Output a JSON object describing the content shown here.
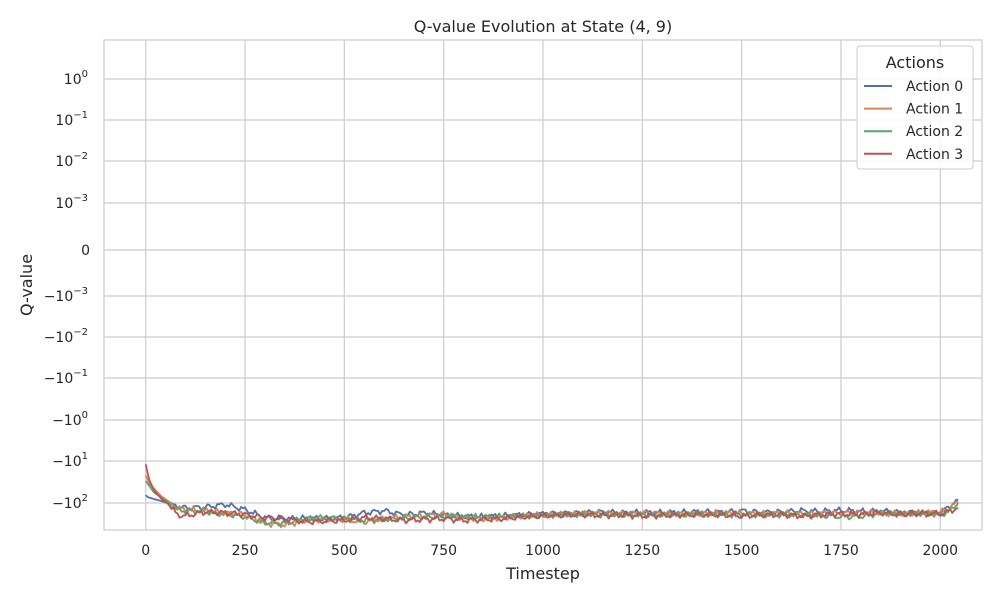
{
  "chart_data": {
    "type": "line",
    "title": "Q-value Evolution at State (4, 9)",
    "xlabel": "Timestep",
    "ylabel": "Q-value",
    "xlim": [
      -105,
      2105
    ],
    "x_ticks": [
      0,
      250,
      500,
      750,
      1000,
      1250,
      1500,
      1750,
      2000
    ],
    "y_scale": "symlog",
    "y_ticks": [
      {
        "value": 1,
        "label": "10",
        "exp": "0"
      },
      {
        "value": 0.1,
        "label": "10",
        "exp": "−1"
      },
      {
        "value": 0.01,
        "label": "10",
        "exp": "−2"
      },
      {
        "value": 0.001,
        "label": "10",
        "exp": "−3"
      },
      {
        "value": 0,
        "label": "0",
        "exp": ""
      },
      {
        "value": -0.001,
        "label": "−10",
        "exp": "−3"
      },
      {
        "value": -0.01,
        "label": "−10",
        "exp": "−2"
      },
      {
        "value": -0.1,
        "label": "−10",
        "exp": "−1"
      },
      {
        "value": -1,
        "label": "−10",
        "exp": "0"
      },
      {
        "value": -10,
        "label": "−10",
        "exp": "1"
      },
      {
        "value": -100,
        "label": "−10",
        "exp": "2"
      }
    ],
    "grid": true,
    "legend": {
      "title": "Actions",
      "position": "top-right"
    },
    "x": [
      0,
      5,
      10,
      20,
      40,
      60,
      80,
      100,
      150,
      200,
      250,
      300,
      350,
      400,
      450,
      500,
      550,
      600,
      650,
      700,
      750,
      800,
      850,
      900,
      950,
      1000,
      1050,
      1100,
      1150,
      1200,
      1250,
      1300,
      1350,
      1400,
      1450,
      1500,
      1550,
      1600,
      1650,
      1700,
      1750,
      1800,
      1850,
      1900,
      1950,
      2000,
      2025,
      2045
    ],
    "series": [
      {
        "name": "Action 0",
        "color": "#4c72b0",
        "values": [
          -65,
          -72,
          -75,
          -80,
          -90,
          -105,
          -112,
          -118,
          -115,
          -105,
          -125,
          -165,
          -172,
          -168,
          -170,
          -165,
          -140,
          -130,
          -150,
          -140,
          -150,
          -158,
          -160,
          -155,
          -150,
          -145,
          -142,
          -140,
          -135,
          -140,
          -138,
          -140,
          -138,
          -135,
          -138,
          -130,
          -138,
          -135,
          -130,
          -133,
          -128,
          -133,
          -132,
          -138,
          -145,
          -140,
          -110,
          -85
        ]
      },
      {
        "name": "Action 1",
        "color": "#dd8452",
        "values": [
          -22,
          -28,
          -35,
          -45,
          -70,
          -95,
          -120,
          -125,
          -130,
          -140,
          -150,
          -200,
          -210,
          -180,
          -175,
          -175,
          -190,
          -170,
          -160,
          -155,
          -145,
          -165,
          -170,
          -165,
          -155,
          -150,
          -148,
          -145,
          -140,
          -145,
          -140,
          -142,
          -145,
          -143,
          -140,
          -142,
          -145,
          -140,
          -145,
          -142,
          -140,
          -138,
          -140,
          -145,
          -140,
          -138,
          -120,
          -95
        ]
      },
      {
        "name": "Action 2",
        "color": "#55a868",
        "values": [
          -30,
          -35,
          -40,
          -55,
          -75,
          -100,
          -125,
          -130,
          -135,
          -145,
          -160,
          -195,
          -200,
          -170,
          -165,
          -170,
          -180,
          -175,
          -165,
          -160,
          -158,
          -162,
          -160,
          -158,
          -155,
          -150,
          -148,
          -145,
          -150,
          -148,
          -150,
          -150,
          -148,
          -145,
          -148,
          -150,
          -148,
          -150,
          -150,
          -152,
          -160,
          -158,
          -140,
          -145,
          -140,
          -148,
          -130,
          -100
        ]
      },
      {
        "name": "Action 3",
        "color": "#c44e52",
        "values": [
          -12,
          -20,
          -30,
          -48,
          -80,
          -110,
          -150,
          -155,
          -135,
          -140,
          -148,
          -165,
          -170,
          -190,
          -185,
          -180,
          -165,
          -170,
          -180,
          -175,
          -170,
          -180,
          -175,
          -170,
          -160,
          -155,
          -150,
          -148,
          -152,
          -150,
          -155,
          -152,
          -150,
          -148,
          -150,
          -155,
          -150,
          -148,
          -155,
          -150,
          -145,
          -148,
          -140,
          -148,
          -140,
          -145,
          -130,
          -118
        ]
      }
    ]
  }
}
